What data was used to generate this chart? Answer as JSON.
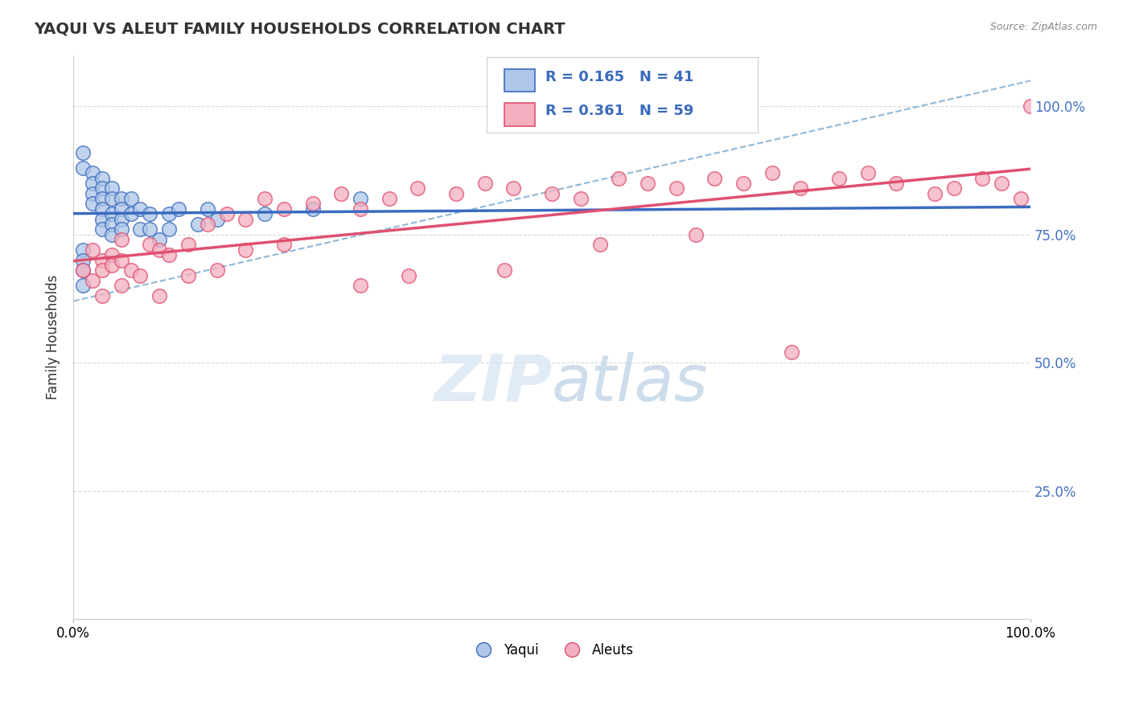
{
  "title": "YAQUI VS ALEUT FAMILY HOUSEHOLDS CORRELATION CHART",
  "source": "Source: ZipAtlas.com",
  "ylabel": "Family Households",
  "yaqui_R": 0.165,
  "yaqui_N": 41,
  "aleut_R": 0.361,
  "aleut_N": 59,
  "yaqui_color": "#aec6e8",
  "aleut_color": "#f4afc0",
  "yaqui_line_color": "#3a6bbf",
  "aleut_line_color": "#e05070",
  "dashed_line_color": "#90b8d8",
  "background_color": "#ffffff",
  "grid_color": "#d8d8d8",
  "right_tick_color": "#4472c4",
  "ytick_values": [
    25.0,
    50.0,
    75.0,
    100.0
  ],
  "xlim": [
    0,
    100
  ],
  "ylim": [
    0,
    110
  ],
  "yaqui_x": [
    1,
    1,
    2,
    2,
    2,
    2,
    3,
    3,
    3,
    3,
    3,
    3,
    4,
    4,
    4,
    4,
    4,
    5,
    5,
    5,
    5,
    6,
    6,
    7,
    7,
    8,
    8,
    9,
    10,
    10,
    11,
    13,
    14,
    15,
    20,
    25,
    30,
    1,
    1,
    1,
    1
  ],
  "yaqui_y": [
    91,
    88,
    87,
    85,
    83,
    81,
    86,
    84,
    82,
    80,
    78,
    76,
    84,
    82,
    79,
    77,
    75,
    82,
    80,
    78,
    76,
    82,
    79,
    80,
    76,
    79,
    76,
    74,
    79,
    76,
    80,
    77,
    80,
    78,
    79,
    80,
    82,
    72,
    70,
    68,
    65
  ],
  "aleut_x": [
    1,
    2,
    2,
    3,
    3,
    4,
    4,
    5,
    5,
    6,
    8,
    9,
    10,
    12,
    14,
    16,
    18,
    20,
    22,
    25,
    28,
    30,
    33,
    36,
    40,
    43,
    46,
    50,
    53,
    57,
    60,
    63,
    67,
    70,
    73,
    76,
    80,
    83,
    86,
    90,
    92,
    95,
    97,
    99,
    100,
    3,
    5,
    7,
    9,
    12,
    15,
    18,
    22,
    30,
    35,
    45,
    55,
    65,
    75
  ],
  "aleut_y": [
    68,
    66,
    72,
    70,
    68,
    71,
    69,
    74,
    70,
    68,
    73,
    72,
    71,
    73,
    77,
    79,
    78,
    82,
    80,
    81,
    83,
    80,
    82,
    84,
    83,
    85,
    84,
    83,
    82,
    86,
    85,
    84,
    86,
    85,
    87,
    84,
    86,
    87,
    85,
    83,
    84,
    86,
    85,
    82,
    100,
    63,
    65,
    67,
    63,
    67,
    68,
    72,
    73,
    65,
    67,
    68,
    73,
    75,
    52
  ],
  "dashed_line_x": [
    0,
    100
  ],
  "dashed_line_y": [
    62,
    105
  ]
}
